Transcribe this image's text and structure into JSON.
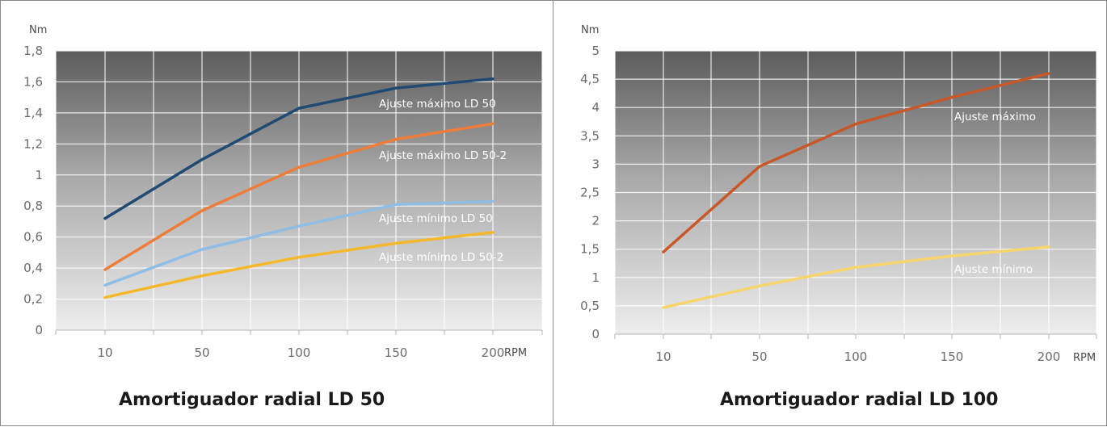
{
  "chart_data": [
    {
      "type": "line",
      "caption": "Amortiguador radial LD 50",
      "ylabel": "Nm",
      "xlabel": "RPM",
      "categories": [
        "10",
        "50",
        "100",
        "150",
        "200"
      ],
      "ylim": [
        0,
        1.8
      ],
      "yticks": [
        "0",
        "0,2",
        "0,4",
        "0,6",
        "0,8",
        "1",
        "1,2",
        "1,4",
        "1,6",
        "1,8"
      ],
      "grid": true,
      "series": [
        {
          "name": "Ajuste máximo LD 50",
          "values": [
            0.72,
            1.1,
            1.43,
            1.56,
            1.62
          ],
          "color": "#1f4a73"
        },
        {
          "name": "Ajuste máximo LD 50-2",
          "values": [
            0.39,
            0.77,
            1.05,
            1.23,
            1.33
          ],
          "color": "#ef7d3a"
        },
        {
          "name": "Ajuste mínimo LD 50",
          "values": [
            0.29,
            0.52,
            0.67,
            0.81,
            0.83
          ],
          "color": "#8ebde6"
        },
        {
          "name": "Ajuste mínimo LD 50-2",
          "values": [
            0.21,
            0.35,
            0.47,
            0.56,
            0.63
          ],
          "color": "#f5b82a"
        }
      ]
    },
    {
      "type": "line",
      "caption": "Amortiguador radial LD 100",
      "ylabel": "Nm",
      "xlabel": "RPM",
      "categories": [
        "10",
        "50",
        "100",
        "150",
        "200"
      ],
      "ylim": [
        0,
        5
      ],
      "yticks": [
        "0",
        "0,5",
        "1",
        "1,5",
        "2",
        "2,5",
        "3",
        "3,5",
        "4",
        "4,5",
        "5"
      ],
      "grid": true,
      "series": [
        {
          "name": "Ajuste máximo",
          "values": [
            1.45,
            2.96,
            3.71,
            4.18,
            4.6
          ],
          "color": "#c8582a"
        },
        {
          "name": "Ajuste mínimo",
          "values": [
            0.47,
            0.85,
            1.18,
            1.38,
            1.54
          ],
          "color": "#f7d56a"
        }
      ]
    }
  ]
}
